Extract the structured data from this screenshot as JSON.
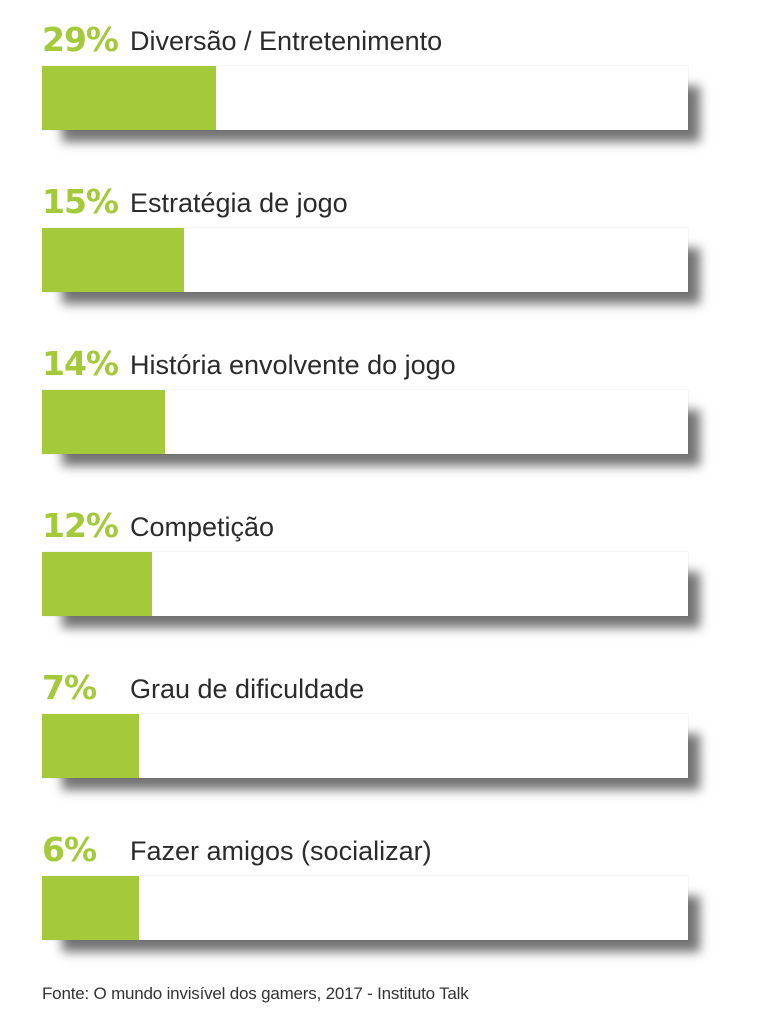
{
  "chart_data": {
    "type": "bar",
    "orientation": "horizontal",
    "categories": [
      "Diversão / Entretenimento",
      "Estratégia de jogo",
      "História envolvente do jogo",
      "Competição",
      "Grau de dificuldade",
      "Fazer amigos (socializar)"
    ],
    "value_labels": [
      "29%",
      "15%",
      "14%",
      "12%",
      "7%",
      "6%"
    ],
    "values": [
      29,
      15,
      14,
      12,
      7,
      6
    ],
    "displayed_fill_fraction": [
      0.27,
      0.22,
      0.19,
      0.17,
      0.15,
      0.15
    ],
    "title": "",
    "xlabel": "",
    "ylabel": "",
    "grid": false,
    "legend": "none",
    "colors": {
      "bar_fill": "#a4c93a",
      "bar_track": "#ffffff",
      "percent_text": "#a4c93a",
      "label_text": "#2b2b2b"
    }
  },
  "source": "Fonte: O mundo invisível dos gamers, 2017 - Instituto Talk"
}
